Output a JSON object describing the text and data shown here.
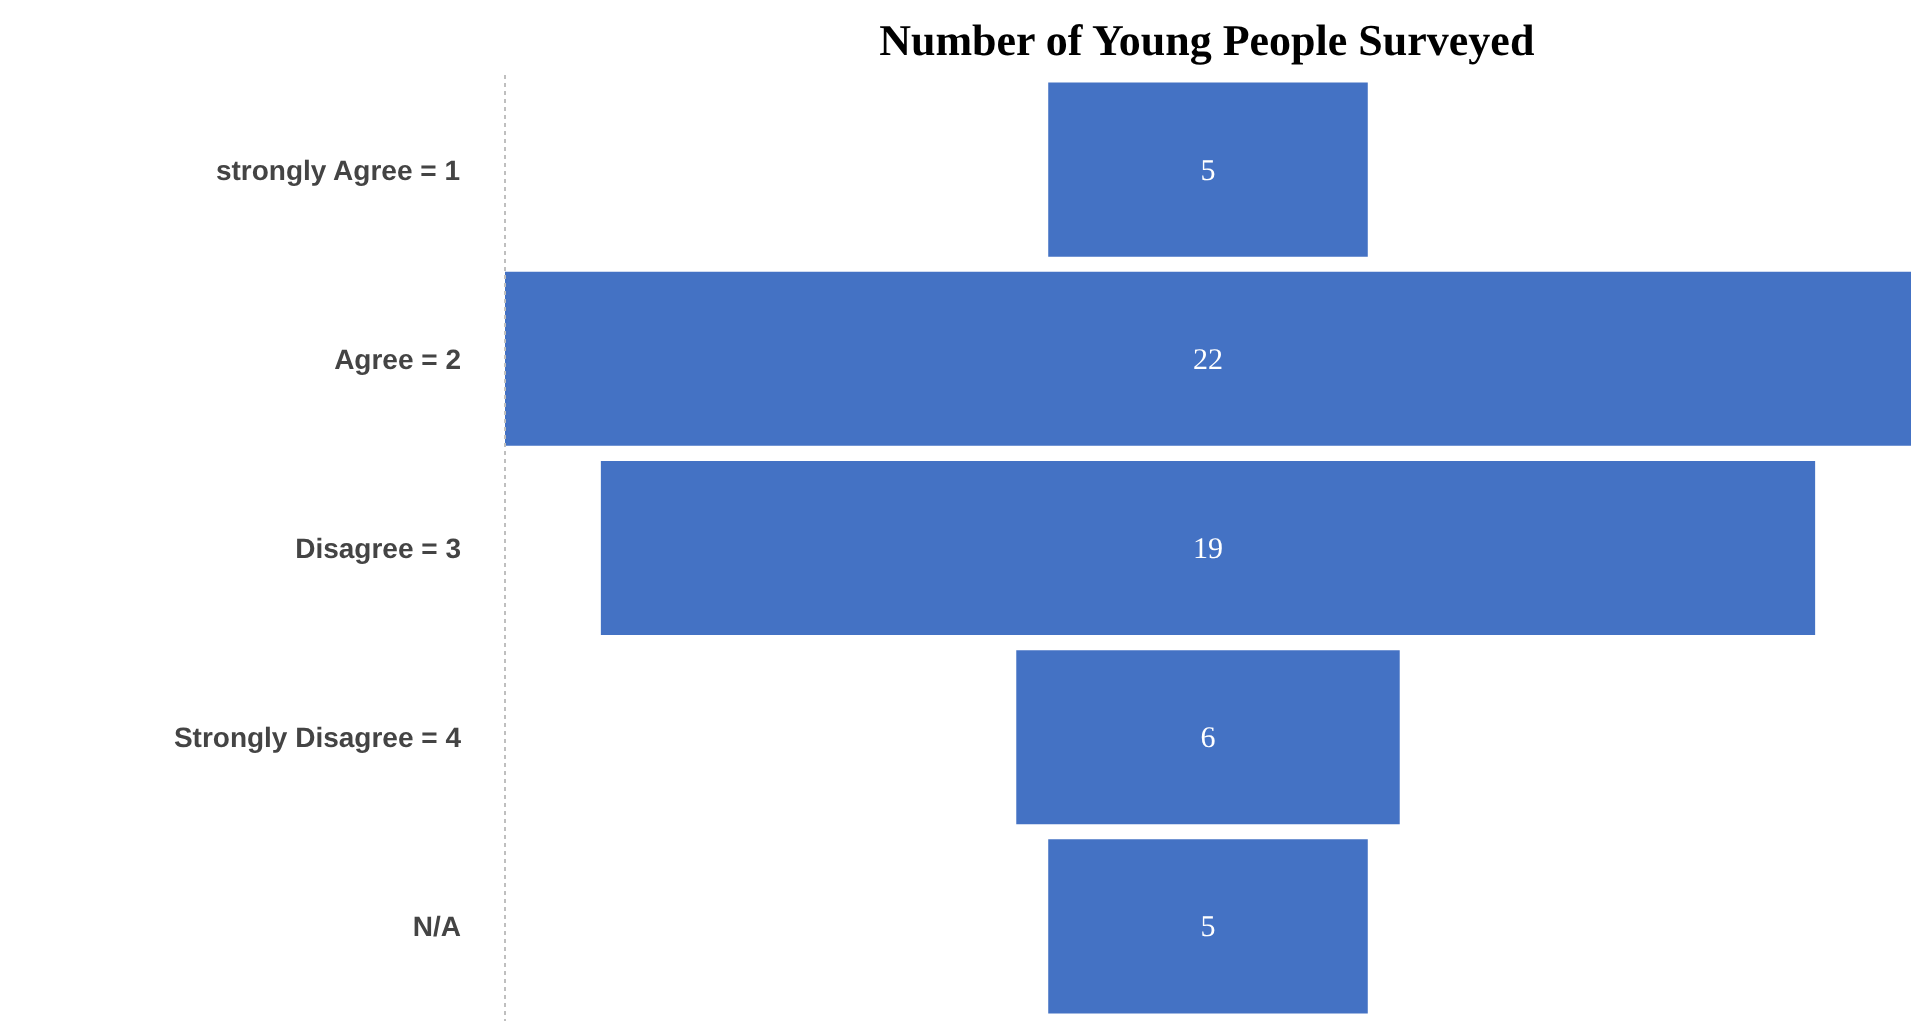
{
  "chart_data": {
    "type": "other",
    "title": "Number of Young People Surveyed",
    "categories": [
      "strongly Agree = 1",
      "Agree = 2",
      "Disagree = 3",
      "Strongly Disagree = 4",
      "N/A"
    ],
    "values": [
      5,
      22,
      19,
      6,
      5
    ],
    "color": "#4472c4",
    "data_labels": true
  }
}
